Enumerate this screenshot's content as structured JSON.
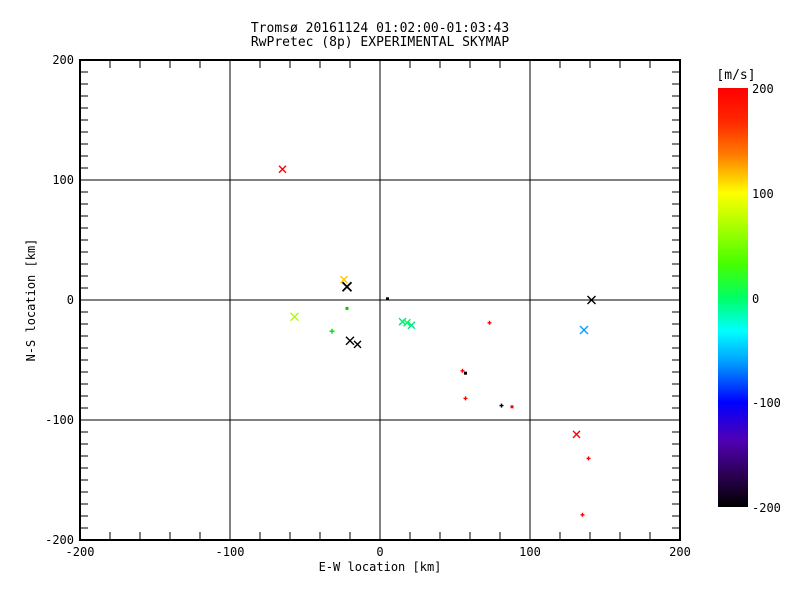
{
  "title": {
    "line1": "Tromsø 20161124 01:02:00-01:03:43",
    "line2": "RwPretec (8p) EXPERIMENTAL SKYMAP"
  },
  "chart_data": {
    "type": "scatter",
    "title": "Tromsø 20161124 01:02:00-01:03:43",
    "subtitle": "RwPretec (8p) EXPERIMENTAL SKYMAP",
    "xlabel": "E-W location [km]",
    "ylabel": "N-S location [km]",
    "xlim": [
      -200,
      200
    ],
    "ylim": [
      -200,
      200
    ],
    "grid": true,
    "x_ticks": [
      {
        "value": -200,
        "label": "-200"
      },
      {
        "value": -100,
        "label": "-100"
      },
      {
        "value": 0,
        "label": "0"
      },
      {
        "value": 100,
        "label": "100"
      },
      {
        "value": 200,
        "label": "200"
      }
    ],
    "y_ticks": [
      {
        "value": 200,
        "label": "200"
      },
      {
        "value": 100,
        "label": "100"
      },
      {
        "value": 0,
        "label": "0"
      },
      {
        "value": -100,
        "label": "-100"
      },
      {
        "value": -200,
        "label": "-200"
      }
    ],
    "x_minor_step": 20,
    "y_minor_step": 10,
    "points": [
      {
        "x": -65,
        "y": 109,
        "color": "#ff0000",
        "marker": "x",
        "size": 7,
        "velocity_ms": 195
      },
      {
        "x": -24,
        "y": 17,
        "color": "#ffc800",
        "marker": "x",
        "size": 7,
        "velocity_ms": 130
      },
      {
        "x": -22,
        "y": 11,
        "color": "#000000",
        "marker": "x",
        "size": 9,
        "velocity_ms": -200
      },
      {
        "x": -22,
        "y": -7,
        "color": "#00c800",
        "marker": "dot",
        "size": 3,
        "velocity_ms": 25
      },
      {
        "x": -57,
        "y": -14,
        "color": "#aaff00",
        "marker": "x",
        "size": 8,
        "velocity_ms": 65
      },
      {
        "x": -32,
        "y": -26,
        "color": "#00e100",
        "marker": "plus",
        "size": 5,
        "velocity_ms": 25
      },
      {
        "x": -20,
        "y": -34,
        "color": "#000000",
        "marker": "x",
        "size": 8,
        "velocity_ms": -200
      },
      {
        "x": -15,
        "y": -37,
        "color": "#000000",
        "marker": "x",
        "size": 7,
        "velocity_ms": -200
      },
      {
        "x": 5,
        "y": 1,
        "color": "#000000",
        "marker": "dot",
        "size": 3,
        "velocity_ms": -200
      },
      {
        "x": 15,
        "y": -18,
        "color": "#00e67d",
        "marker": "x",
        "size": 7,
        "velocity_ms": -5
      },
      {
        "x": 18,
        "y": -19,
        "color": "#00ff50",
        "marker": "x",
        "size": 7,
        "velocity_ms": 5
      },
      {
        "x": 21,
        "y": -21,
        "color": "#00e690",
        "marker": "x",
        "size": 7,
        "velocity_ms": -10
      },
      {
        "x": 73,
        "y": -19,
        "color": "#ff0000",
        "marker": "plus",
        "size": 4,
        "velocity_ms": 195
      },
      {
        "x": 55,
        "y": -59,
        "color": "#ff0000",
        "marker": "plus",
        "size": 4,
        "velocity_ms": 195
      },
      {
        "x": 57,
        "y": -61,
        "color": "#000000",
        "marker": "dot",
        "size": 3,
        "velocity_ms": -200
      },
      {
        "x": 57,
        "y": -82,
        "color": "#ff0000",
        "marker": "plus",
        "size": 4,
        "velocity_ms": 195
      },
      {
        "x": 81,
        "y": -88,
        "color": "#000000",
        "marker": "plus",
        "size": 4,
        "velocity_ms": -200
      },
      {
        "x": 88,
        "y": -89,
        "color": "#ff0000",
        "marker": "dot",
        "size": 3,
        "velocity_ms": 195
      },
      {
        "x": 141,
        "y": 0,
        "color": "#000000",
        "marker": "x",
        "size": 8,
        "velocity_ms": -200
      },
      {
        "x": 136,
        "y": -25,
        "color": "#00a0ff",
        "marker": "x",
        "size": 8,
        "velocity_ms": -70
      },
      {
        "x": 131,
        "y": -112,
        "color": "#ff0000",
        "marker": "x",
        "size": 7,
        "velocity_ms": 195
      },
      {
        "x": 139,
        "y": -132,
        "color": "#ff0000",
        "marker": "plus",
        "size": 4,
        "velocity_ms": 195
      },
      {
        "x": 135,
        "y": -179,
        "color": "#ff0000",
        "marker": "plus",
        "size": 4,
        "velocity_ms": 195
      }
    ],
    "colorbar": {
      "label": "[m/s]",
      "range": [
        -200,
        200
      ],
      "ticks": [
        {
          "value": 200,
          "label": "200"
        },
        {
          "value": 100,
          "label": "100"
        },
        {
          "value": 0,
          "label": "0"
        },
        {
          "value": -100,
          "label": "-100"
        },
        {
          "value": -200,
          "label": "-200"
        }
      ],
      "gradient_stops": [
        "#ff0000 0%",
        "#ff2800 8%",
        "#ff7d00 16%",
        "#ffff00 25%",
        "#b4ff00 32%",
        "#46ff00 42%",
        "#00ff64 50%",
        "#00ffff 58%",
        "#0096ff 66%",
        "#0000ff 75%",
        "#5000b4 84%",
        "#28004b 93%",
        "#000000 100%"
      ]
    },
    "axis_color": "#000000",
    "background_color": "#ffffff"
  }
}
